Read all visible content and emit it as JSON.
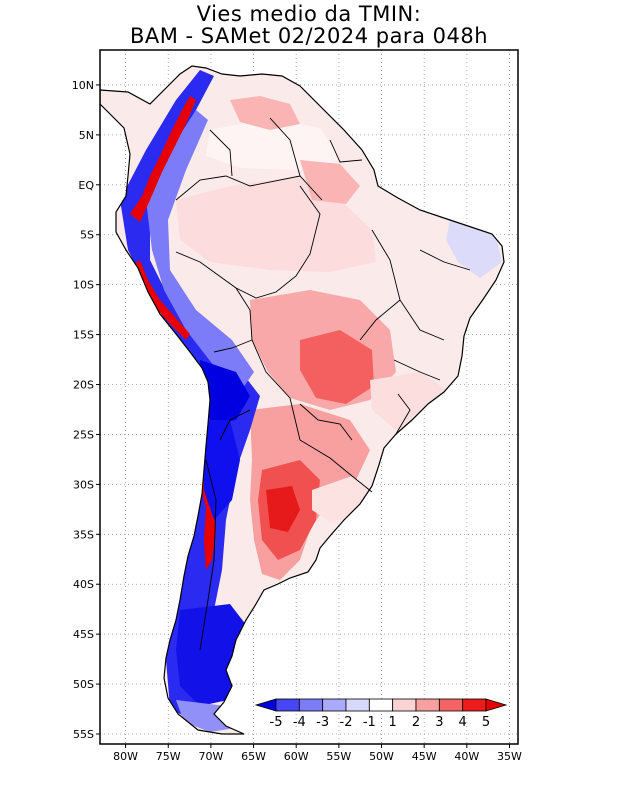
{
  "title": {
    "line1": "Vies medio da TMIN:",
    "line2": "BAM - SAMet 02/2024  para 048h"
  },
  "axes": {
    "lat_labels": [
      "10N",
      "5N",
      "EQ",
      "5S",
      "10S",
      "15S",
      "20S",
      "25S",
      "30S",
      "35S",
      "40S",
      "45S",
      "50S",
      "55S"
    ],
    "lat_values": [
      10,
      5,
      0,
      -5,
      -10,
      -15,
      -20,
      -25,
      -30,
      -35,
      -40,
      -45,
      -50,
      -55
    ],
    "lon_labels": [
      "80W",
      "75W",
      "70W",
      "65W",
      "60W",
      "55W",
      "50W",
      "45W",
      "40W",
      "35W"
    ],
    "lon_values": [
      -80,
      -75,
      -70,
      -65,
      -60,
      -55,
      -50,
      -45,
      -40,
      -35
    ],
    "lat_range": [
      -56,
      13.5
    ],
    "lon_range": [
      -83,
      -34
    ]
  },
  "colorbar": {
    "labels": [
      "-5",
      "-4",
      "-3",
      "-2",
      "-1",
      "1",
      "2",
      "3",
      "4",
      "5"
    ],
    "colors": [
      "#1212f0",
      "#4646f5",
      "#7c7cf8",
      "#aaaafa",
      "#d8d8fc",
      "#ffffff",
      "#fcd2d2",
      "#f8a0a0",
      "#f46464",
      "#ec1c1c",
      "#e60000"
    ],
    "under_color": "#0000e0",
    "over_color": "#e60000"
  },
  "colors": {
    "frame": "#000000",
    "grid": "#999999",
    "coast": "#000000"
  }
}
